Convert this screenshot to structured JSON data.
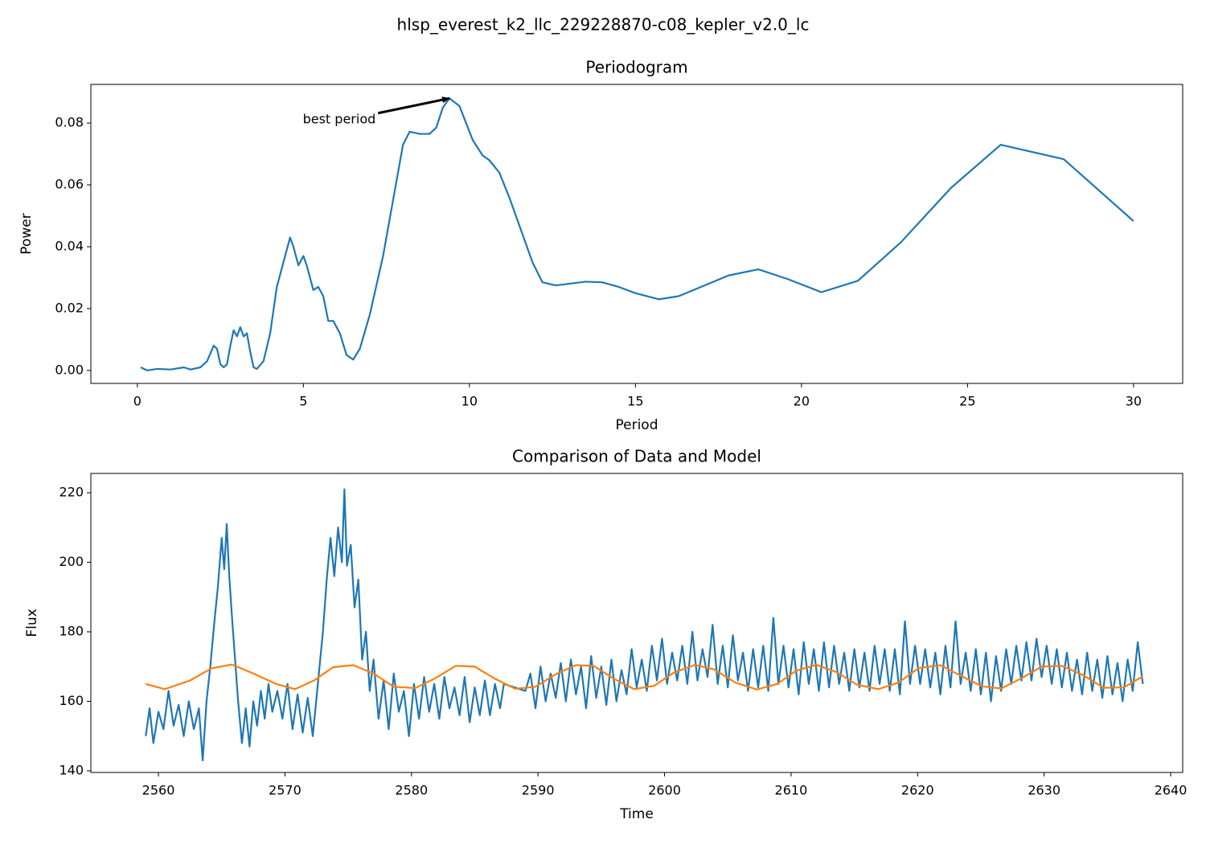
{
  "title": "hlsp_everest_k2_llc_229228870-c08_kepler_v2.0_lc",
  "chart_data": [
    {
      "type": "line",
      "title": "Periodogram",
      "x_label": "Period",
      "y_label": "Power",
      "xlim": [
        -1.4,
        31.48
      ],
      "ylim": [
        -0.0042,
        0.0925
      ],
      "xticks": [
        0,
        5,
        10,
        15,
        20,
        25,
        30
      ],
      "yticks": [
        {
          "value": 0,
          "label": "0.00"
        },
        0.02,
        0.04,
        0.06,
        0.08
      ],
      "series": [
        {
          "color": "#1f77b4",
          "x": [
            0.1,
            0.3,
            0.6,
            1.0,
            1.4,
            1.6,
            1.9,
            2.1,
            2.3,
            2.4,
            2.5,
            2.6,
            2.7,
            2.8,
            2.9,
            3.0,
            3.1,
            3.2,
            3.3,
            3.4,
            3.5,
            3.6,
            3.8,
            4.0,
            4.2,
            4.4,
            4.6,
            4.7,
            4.85,
            5.0,
            5.1,
            5.3,
            5.45,
            5.6,
            5.75,
            5.9,
            6.1,
            6.3,
            6.5,
            6.7,
            7.0,
            7.4,
            7.8,
            8.0,
            8.2,
            8.5,
            8.8,
            9.0,
            9.2,
            9.4,
            9.7,
            10.1,
            10.4,
            10.6,
            10.9,
            11.2,
            11.9,
            12.2,
            12.6,
            13.5,
            14.0,
            14.5,
            15.0,
            15.7,
            16.3,
            17.8,
            18.7,
            19.6,
            20.6,
            21.7,
            23.0,
            24.5,
            26.0,
            27.9,
            30.0
          ],
          "values": [
            0.001,
            0,
            0.0005,
            0.0003,
            0.001,
            0.0003,
            0.001,
            0.003,
            0.008,
            0.007,
            0.002,
            0.001,
            0.002,
            0.008,
            0.013,
            0.011,
            0.014,
            0.011,
            0.012,
            0.006,
            0.001,
            0.0005,
            0.003,
            0.012,
            0.027,
            0.035,
            0.043,
            0.04,
            0.034,
            0.037,
            0.034,
            0.026,
            0.027,
            0.024,
            0.016,
            0.016,
            0.012,
            0.005,
            0.0035,
            0.007,
            0.018,
            0.037,
            0.061,
            0.073,
            0.0772,
            0.0765,
            0.0765,
            0.0785,
            0.085,
            0.088,
            0.0855,
            0.0745,
            0.0695,
            0.068,
            0.064,
            0.056,
            0.035,
            0.0285,
            0.0275,
            0.0287,
            0.0285,
            0.027,
            0.025,
            0.023,
            0.024,
            0.0307,
            0.0327,
            0.0295,
            0.0253,
            0.029,
            0.0415,
            0.059,
            0.073,
            0.0683,
            0.0483
          ]
        }
      ],
      "annotations": [
        {
          "text": "best period",
          "xy": [
            9.4,
            0.088
          ],
          "xytext": [
            6.08,
            0.081
          ]
        }
      ]
    },
    {
      "type": "line",
      "title": "Comparison of Data and Model",
      "x_label": "Time",
      "y_label": "Flux",
      "xlim": [
        2554.66,
        2640.95
      ],
      "ylim": [
        139.54,
        225.55
      ],
      "xticks": [
        2560,
        2570,
        2580,
        2590,
        2600,
        2610,
        2620,
        2630,
        2640
      ],
      "yticks": [
        140,
        160,
        180,
        200,
        220
      ],
      "series": [
        {
          "color": "#1f77b4",
          "x": [
            2559.0,
            2559.3,
            2559.6,
            2560,
            2560.4,
            2560.8,
            2561.2,
            2561.6,
            2562,
            2562.4,
            2562.8,
            2563.2,
            2563.5,
            2563.8,
            2564.1,
            2564.4,
            2564.7,
            2565,
            2565.2,
            2565.4,
            2565.6,
            2565.8,
            2566,
            2566.3,
            2566.6,
            2566.9,
            2567.2,
            2567.5,
            2567.8,
            2568.1,
            2568.4,
            2568.7,
            2569,
            2569.4,
            2569.8,
            2570.2,
            2570.6,
            2571,
            2571.4,
            2571.8,
            2572.2,
            2572.6,
            2573,
            2573.3,
            2573.6,
            2573.9,
            2574.2,
            2574.5,
            2574.7,
            2574.9,
            2575.2,
            2575.5,
            2575.8,
            2576.1,
            2576.4,
            2576.7,
            2577,
            2577.4,
            2577.8,
            2578.2,
            2578.6,
            2579,
            2579.4,
            2579.8,
            2580.2,
            2580.6,
            2581,
            2581.4,
            2581.8,
            2582.2,
            2582.6,
            2583,
            2583.4,
            2583.8,
            2584.2,
            2584.6,
            2585,
            2585.4,
            2585.8,
            2586.2,
            2586.6,
            2587,
            2587.3,
            2589,
            2589.4,
            2589.8,
            2590.2,
            2590.6,
            2591,
            2591.4,
            2591.8,
            2592.2,
            2592.6,
            2593,
            2593.4,
            2593.8,
            2594.2,
            2594.6,
            2595,
            2595.4,
            2595.8,
            2596.2,
            2596.6,
            2597,
            2597.4,
            2597.8,
            2598.2,
            2598.6,
            2599,
            2599.4,
            2599.8,
            2600.2,
            2600.6,
            2601,
            2601.4,
            2601.8,
            2602.2,
            2602.6,
            2603,
            2603.4,
            2603.8,
            2604.2,
            2604.6,
            2605,
            2605.4,
            2605.8,
            2606.2,
            2606.6,
            2607,
            2607.4,
            2607.8,
            2608.2,
            2608.6,
            2609,
            2609.4,
            2609.8,
            2610.2,
            2610.6,
            2611,
            2611.4,
            2611.8,
            2612.2,
            2612.6,
            2613,
            2613.4,
            2613.8,
            2614.2,
            2614.6,
            2615,
            2615.4,
            2615.8,
            2616.2,
            2616.6,
            2617,
            2617.4,
            2617.8,
            2618.2,
            2618.6,
            2619,
            2619.4,
            2619.8,
            2620.2,
            2620.6,
            2621,
            2621.4,
            2621.8,
            2622.2,
            2622.6,
            2623,
            2623.4,
            2623.8,
            2624.2,
            2624.6,
            2625,
            2625.4,
            2625.8,
            2626.2,
            2626.6,
            2627,
            2627.4,
            2627.8,
            2628.2,
            2628.6,
            2629,
            2629.4,
            2629.8,
            2630.2,
            2630.6,
            2631,
            2631.4,
            2631.8,
            2632.2,
            2632.6,
            2633,
            2633.4,
            2633.8,
            2634.2,
            2634.6,
            2635,
            2635.4,
            2635.8,
            2636.2,
            2636.6,
            2637,
            2637.4,
            2637.8
          ],
          "values": [
            150,
            158,
            148,
            157,
            152,
            163,
            153,
            159,
            150,
            160,
            152,
            158,
            143,
            160,
            170,
            182,
            193,
            207,
            198,
            211,
            196,
            185,
            175,
            160,
            148,
            158,
            147,
            160,
            153,
            163,
            155,
            165,
            157,
            163,
            155,
            165,
            152,
            162,
            151,
            161,
            150,
            165,
            180,
            195,
            207,
            196,
            210,
            200,
            221,
            199,
            205,
            187,
            195,
            172,
            180,
            163,
            172,
            155,
            166,
            152,
            168,
            157,
            163,
            150,
            165,
            155,
            167,
            157,
            165,
            155,
            167,
            158,
            164,
            156,
            167,
            154,
            164,
            156,
            166,
            156,
            165,
            158,
            165,
            163,
            168,
            158,
            170,
            160,
            168,
            161,
            171,
            160,
            172,
            162,
            170,
            158,
            173,
            161,
            170,
            159,
            172,
            160,
            169,
            162,
            175,
            164,
            172,
            163,
            176,
            166,
            178,
            165,
            174,
            166,
            176,
            165,
            180,
            166,
            175,
            167,
            182,
            165,
            176,
            164,
            179,
            166,
            174,
            163,
            175,
            164,
            176,
            163,
            184,
            165,
            176,
            164,
            175,
            162,
            177,
            165,
            175,
            163,
            177,
            164,
            176,
            165,
            174,
            163,
            175,
            164,
            174,
            163,
            176,
            165,
            175,
            163,
            175,
            162,
            183,
            165,
            176,
            165,
            175,
            164,
            174,
            162,
            176,
            164,
            183,
            165,
            174,
            163,
            175,
            162,
            174,
            160,
            173,
            163,
            175,
            165,
            176,
            166,
            177,
            166,
            178,
            167,
            176,
            165,
            175,
            164,
            174,
            163,
            172,
            162,
            174,
            163,
            172,
            161,
            173,
            162,
            171,
            160,
            172,
            163,
            177,
            165
          ]
        },
        {
          "color": "#ff7f0e",
          "x": [
            2559,
            2560.5,
            2562.5,
            2564.2,
            2565.8,
            2567.5,
            2569.3,
            2570.8,
            2572.3,
            2573.8,
            2575.4,
            2577,
            2578.6,
            2580.3,
            2581.8,
            2583.5,
            2585,
            2586.6,
            2588.2,
            2589.8,
            2591.4,
            2593,
            2594.4,
            2596,
            2597.6,
            2599.2,
            2600.7,
            2602.4,
            2603.9,
            2605.6,
            2607.3,
            2608.9,
            2610.4,
            2612,
            2613.6,
            2615.2,
            2616.9,
            2618.5,
            2620.1,
            2621.8,
            2623.4,
            2625.1,
            2626.6,
            2628.3,
            2629.8,
            2631.4,
            2633.1,
            2634.7,
            2636.3,
            2637.8
          ],
          "values": [
            165,
            163.5,
            166,
            169.5,
            170.6,
            168,
            165,
            163.5,
            166,
            169.8,
            170.4,
            168,
            164.2,
            163.8,
            166.5,
            170.2,
            170,
            166.5,
            163.6,
            164.2,
            167.8,
            170.4,
            170.2,
            166.5,
            163.5,
            164.5,
            168.2,
            170.5,
            169.2,
            165.4,
            163.4,
            165,
            168.8,
            170.5,
            168.4,
            164.8,
            163.5,
            165.4,
            169.6,
            170.4,
            167.4,
            164.3,
            163.7,
            166.8,
            170,
            170.2,
            167.5,
            163.9,
            164,
            167.2
          ]
        }
      ]
    }
  ]
}
